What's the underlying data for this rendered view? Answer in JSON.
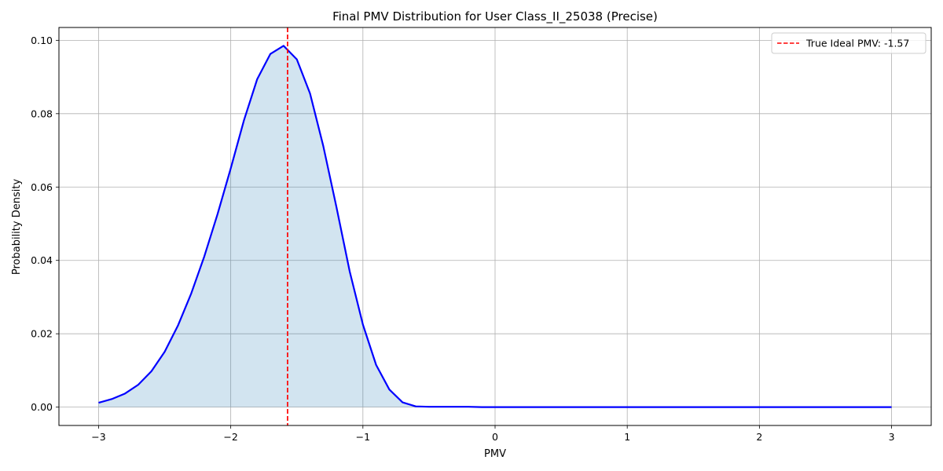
{
  "chart_data": {
    "type": "line",
    "title": "Final PMV Distribution for User Class_II_25038 (Precise)",
    "xlabel": "PMV",
    "ylabel": "Probability Density",
    "xlim": [
      -3.3,
      3.3
    ],
    "ylim": [
      -0.005,
      0.1035
    ],
    "xticks": [
      -3,
      -2,
      -1,
      0,
      1,
      2,
      3
    ],
    "xtick_labels": [
      "−3",
      "−2",
      "−1",
      "0",
      "1",
      "2",
      "3"
    ],
    "yticks": [
      0.0,
      0.02,
      0.04,
      0.06,
      0.08,
      0.1
    ],
    "ytick_labels": [
      "0.00",
      "0.02",
      "0.04",
      "0.06",
      "0.08",
      "0.10"
    ],
    "grid": true,
    "legend_position": "top-right",
    "series": [
      {
        "name": "",
        "color": "#0000ff",
        "fill_color": "#1f77b4",
        "fill_opacity": 0.2,
        "x": [
          -3.0,
          -2.9,
          -2.8,
          -2.7,
          -2.6,
          -2.5,
          -2.4,
          -2.3,
          -2.2,
          -2.1,
          -2.0,
          -1.9,
          -1.8,
          -1.7,
          -1.6,
          -1.5,
          -1.4,
          -1.3,
          -1.2,
          -1.1,
          -1.0,
          -0.9,
          -0.8,
          -0.7,
          -0.6,
          -0.5,
          -0.4,
          -0.3,
          -0.2,
          -0.1,
          0.0,
          0.5,
          1.0,
          1.5,
          2.0,
          2.5,
          3.0
        ],
        "y": [
          0.0012,
          0.0022,
          0.0037,
          0.0061,
          0.0098,
          0.0151,
          0.0222,
          0.0309,
          0.0411,
          0.0526,
          0.0651,
          0.0782,
          0.0894,
          0.0963,
          0.0985,
          0.0948,
          0.0855,
          0.0712,
          0.0545,
          0.037,
          0.0225,
          0.0115,
          0.0048,
          0.0013,
          0.0002,
          0.0001,
          0.0001,
          0.0001,
          0.0001,
          0.0,
          0.0,
          0.0,
          0.0,
          0.0,
          0.0,
          0.0,
          0.0
        ]
      }
    ],
    "reference_lines": [
      {
        "name": "True Ideal PMV: -1.57",
        "x": -1.57,
        "color": "#ff0000",
        "style": "dashed"
      }
    ]
  }
}
